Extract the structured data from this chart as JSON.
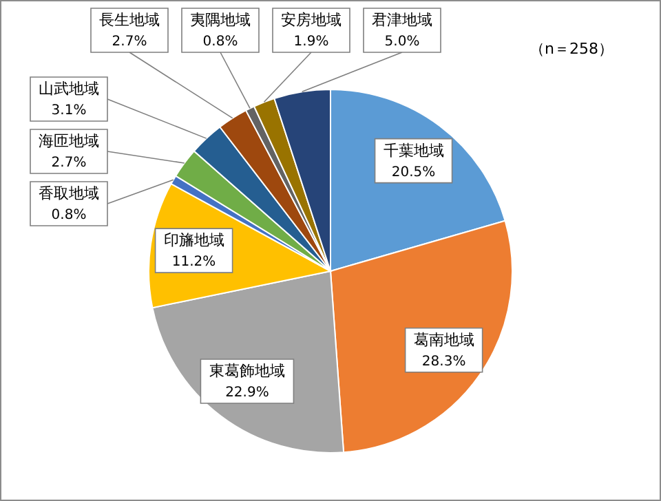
{
  "chart_data": {
    "type": "pie",
    "categories": [
      "千葉地域",
      "葛南地域",
      "東葛飾地域",
      "印旛地域",
      "香取地域",
      "海匝地域",
      "山武地域",
      "長生地域",
      "夷隅地域",
      "安房地域",
      "君津地域"
    ],
    "values": [
      20.5,
      28.3,
      22.9,
      11.2,
      0.8,
      2.7,
      3.1,
      2.7,
      0.8,
      1.9,
      5.0
    ],
    "value_labels": [
      "20.5%",
      "28.3%",
      "22.9%",
      "11.2%",
      "0.8%",
      "2.7%",
      "3.1%",
      "2.7%",
      "0.8%",
      "1.9%",
      "5.0%"
    ],
    "colors": [
      "#5b9bd5",
      "#ed7d31",
      "#a5a5a5",
      "#ffc000",
      "#4472c4",
      "#70ad47",
      "#255e91",
      "#9e480e",
      "#636363",
      "#997300",
      "#264478"
    ],
    "annotations": [
      "（n＝258）"
    ]
  }
}
